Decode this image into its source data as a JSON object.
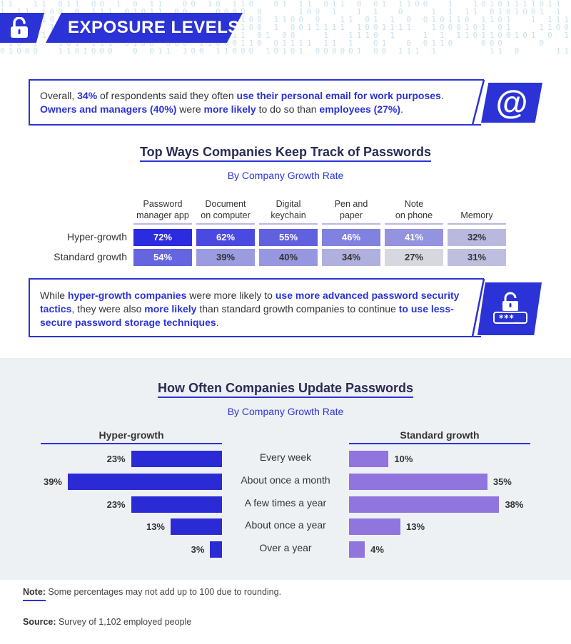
{
  "header": {
    "title": "EXPOSURE LEVELS",
    "icon": "unlocked-padlock-icon",
    "accent": "#2b33d6"
  },
  "callout1": {
    "parts": [
      {
        "text": "Overall, ",
        "hl": false
      },
      {
        "text": "34%",
        "hl": true
      },
      {
        "text": " of respondents said they often ",
        "hl": false
      },
      {
        "text": "use their personal email for work purposes",
        "hl": true
      },
      {
        "text": ". ",
        "hl": false
      },
      {
        "text": "Owners and managers (40%)",
        "hl": true
      },
      {
        "text": " were ",
        "hl": false
      },
      {
        "text": "more likely",
        "hl": true
      },
      {
        "text": " to do so than ",
        "hl": false
      },
      {
        "text": "employees (27%)",
        "hl": true
      },
      {
        "text": ".",
        "hl": false
      }
    ],
    "icon": "at-sign-icon",
    "glyph": "@"
  },
  "callout2": {
    "parts": [
      {
        "text": "While ",
        "hl": false
      },
      {
        "text": "hyper-growth companies",
        "hl": true
      },
      {
        "text": " were more likely to ",
        "hl": false
      },
      {
        "text": "use more advanced password security tactics",
        "hl": true
      },
      {
        "text": ", they were also ",
        "hl": false
      },
      {
        "text": "more likely",
        "hl": true
      },
      {
        "text": " than standard growth companies to continue ",
        "hl": false
      },
      {
        "text": "to use less-secure password storage techniques",
        "hl": true
      },
      {
        "text": ".",
        "hl": false
      }
    ],
    "icon": "password-lock-icon",
    "glyph": "***_"
  },
  "chart_data": [
    {
      "type": "table",
      "title": "Top Ways Companies Keep Track of Passwords",
      "subtitle": "By Company Growth Rate",
      "columns": [
        [
          "Password",
          "manager app"
        ],
        [
          "Document",
          "on computer"
        ],
        [
          "Digital",
          "keychain"
        ],
        [
          "Pen and",
          "paper"
        ],
        [
          "Note",
          "on phone"
        ],
        [
          "",
          "Memory"
        ]
      ],
      "rows": [
        {
          "name": "Hyper-growth",
          "values": [
            72,
            62,
            55,
            46,
            41,
            32
          ]
        },
        {
          "name": "Standard growth",
          "values": [
            54,
            39,
            40,
            34,
            27,
            31
          ]
        }
      ],
      "unit": "%",
      "color_scale": [
        "#d7d7df",
        "#2b2be0"
      ]
    },
    {
      "type": "bar",
      "orientation": "horizontal",
      "title": "How Often Companies Update Passwords",
      "subtitle": "By Company Growth Rate",
      "categories": [
        "Every week",
        "About once a month",
        "A few times a year",
        "About once a year",
        "Over a year"
      ],
      "series": [
        {
          "name": "Hyper-growth",
          "values": [
            23,
            39,
            23,
            13,
            3
          ],
          "color": "#2b2bd6"
        },
        {
          "name": "Standard growth",
          "values": [
            10,
            35,
            38,
            13,
            4
          ],
          "color": "#8f75dd"
        }
      ],
      "unit": "%",
      "xlim": [
        0,
        42
      ]
    }
  ],
  "footer": {
    "note_label": "Note:",
    "note_text": " Some percentages may not add up to 100 due to rounding.",
    "source_label": "Source:",
    "source_text": " Survey of 1,102 employed people"
  }
}
